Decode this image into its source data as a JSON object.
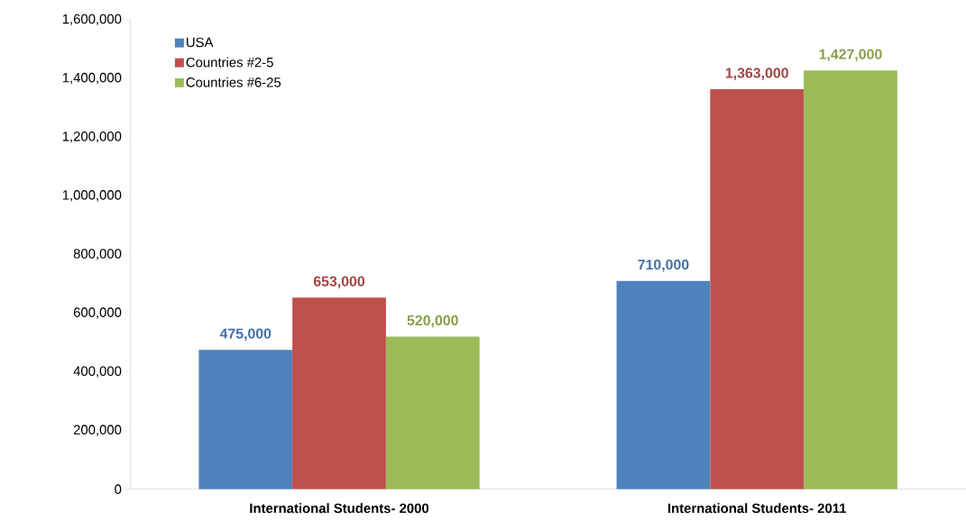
{
  "chart_data": {
    "type": "bar",
    "categories": [
      "International Students- 2000",
      "International Students- 2011"
    ],
    "series": [
      {
        "name": "USA",
        "color": "#4f81bd",
        "values": [
          475000,
          710000
        ],
        "value_labels": [
          "475,000",
          "710,000"
        ]
      },
      {
        "name": "Countries #2-5",
        "color": "#c0504d",
        "values": [
          653000,
          1363000
        ],
        "value_labels": [
          "653,000",
          "1,363,000"
        ]
      },
      {
        "name": "Countries #6-25",
        "color": "#9bbb59",
        "values": [
          520000,
          1427000
        ],
        "value_labels": [
          "520,000",
          "1,427,000"
        ]
      }
    ],
    "ylim": [
      0,
      1600000
    ],
    "yticks": [
      {
        "value": 0,
        "label": "0"
      },
      {
        "value": 200000,
        "label": "200,000"
      },
      {
        "value": 400000,
        "label": "400,000"
      },
      {
        "value": 600000,
        "label": "600,000"
      },
      {
        "value": 800000,
        "label": "800,000"
      },
      {
        "value": 1000000,
        "label": "1,000,000"
      },
      {
        "value": 1200000,
        "label": "1,200,000"
      },
      {
        "value": 1400000,
        "label": "1,400,000"
      },
      {
        "value": 1600000,
        "label": "1,600,000"
      }
    ],
    "grid": false,
    "legend": "top left"
  }
}
